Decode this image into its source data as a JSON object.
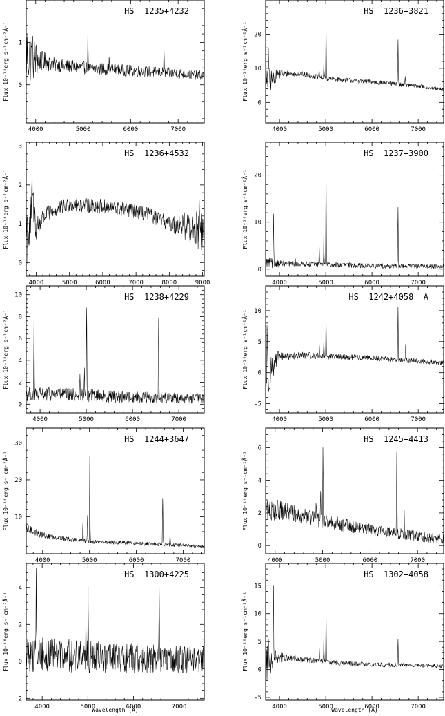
{
  "figure": {
    "xlabel": "Wavelength (Å)",
    "ylabel": "Flux 10⁻¹⁶erg s⁻¹cm⁻²Å⁻¹"
  },
  "chart_data": [
    {
      "type": "line",
      "title": "HS  1235+4232",
      "xlim": [
        3800,
        7550
      ],
      "ylim": [
        -0.9,
        2.0
      ],
      "xticks": [
        4000,
        5000,
        6000,
        7000
      ],
      "yticks": [
        0,
        1
      ],
      "continuum": [
        [
          3800,
          0.75
        ],
        [
          4000,
          0.6
        ],
        [
          4500,
          0.45
        ],
        [
          5000,
          0.4
        ],
        [
          6000,
          0.33
        ],
        [
          7000,
          0.27
        ],
        [
          7500,
          0.22
        ]
      ],
      "noise": [
        [
          3800,
          0.5
        ],
        [
          3950,
          0.35
        ],
        [
          4100,
          0.15
        ],
        [
          4500,
          0.1
        ],
        [
          7500,
          0.07
        ]
      ],
      "lines": [
        [
          5100,
          0.75
        ],
        [
          6700,
          0.65
        ],
        [
          5550,
          0.25
        ]
      ],
      "series": [
        {
          "values": []
        }
      ]
    },
    {
      "type": "line",
      "title": "HS  1236+3821",
      "xlim": [
        3700,
        7550
      ],
      "ylim": [
        -6,
        30
      ],
      "xticks": [
        4000,
        5000,
        6000,
        7000
      ],
      "yticks": [
        0,
        10,
        20
      ],
      "continuum": [
        [
          3700,
          5
        ],
        [
          3850,
          7
        ],
        [
          4000,
          8.5
        ],
        [
          4500,
          8.3
        ],
        [
          5000,
          7
        ],
        [
          6000,
          6
        ],
        [
          7000,
          4.8
        ],
        [
          7500,
          3.8
        ]
      ],
      "noise": [
        [
          3700,
          3
        ],
        [
          3900,
          1.2
        ],
        [
          4200,
          0.5
        ],
        [
          7500,
          0.35
        ]
      ],
      "lines": [
        [
          3760,
          10
        ],
        [
          4860,
          2
        ],
        [
          4960,
          5
        ],
        [
          5007,
          16
        ],
        [
          6563,
          13
        ],
        [
          6720,
          2.5
        ]
      ],
      "series": [
        {
          "values": []
        }
      ]
    },
    {
      "type": "line",
      "title": "HS  1236+4532",
      "xlim": [
        3700,
        9050
      ],
      "ylim": [
        -0.35,
        3.1
      ],
      "xticks": [
        4000,
        5000,
        6000,
        7000,
        8000,
        9000
      ],
      "yticks": [
        0,
        1,
        2,
        3
      ],
      "continuum": [
        [
          3800,
          0.8
        ],
        [
          3900,
          1.6
        ],
        [
          4000,
          0.9
        ],
        [
          4300,
          1.25
        ],
        [
          5000,
          1.5
        ],
        [
          6000,
          1.45
        ],
        [
          7000,
          1.32
        ],
        [
          7500,
          1.2
        ],
        [
          8000,
          1.0
        ],
        [
          8500,
          0.95
        ],
        [
          9000,
          0.8
        ]
      ],
      "noise": [
        [
          3700,
          0.7
        ],
        [
          3900,
          0.3
        ],
        [
          4300,
          0.12
        ],
        [
          8000,
          0.12
        ],
        [
          9000,
          0.35
        ]
      ],
      "lines": [
        [
          3880,
          0.8
        ],
        [
          8900,
          0.8
        ]
      ],
      "series": [
        {
          "values": []
        }
      ]
    },
    {
      "type": "line",
      "title": "HS  1237+3900",
      "xlim": [
        3700,
        7550
      ],
      "ylim": [
        -1.5,
        27
      ],
      "xticks": [
        4000,
        5000,
        6000,
        7000
      ],
      "yticks": [
        0,
        10,
        20
      ],
      "continuum": [
        [
          3700,
          1.2
        ],
        [
          4000,
          1.2
        ],
        [
          5000,
          1.0
        ],
        [
          6000,
          0.7
        ],
        [
          7500,
          0.6
        ]
      ],
      "noise": [
        [
          3700,
          0.9
        ],
        [
          4100,
          0.35
        ],
        [
          7500,
          0.3
        ]
      ],
      "lines": [
        [
          3869,
          10
        ],
        [
          4340,
          1
        ],
        [
          4860,
          4
        ],
        [
          4959,
          6.5
        ],
        [
          5007,
          21
        ],
        [
          6563,
          12.5
        ]
      ],
      "series": [
        {
          "values": []
        }
      ]
    },
    {
      "type": "line",
      "title": "HS  1238+4229",
      "xlim": [
        3700,
        7550
      ],
      "ylim": [
        -0.8,
        10.8
      ],
      "xticks": [
        4000,
        5000,
        6000,
        7000
      ],
      "yticks": [
        0,
        2,
        4,
        6,
        8,
        10
      ],
      "continuum": [
        [
          3700,
          0.9
        ],
        [
          4500,
          0.9
        ],
        [
          5500,
          0.7
        ],
        [
          7500,
          0.5
        ]
      ],
      "noise": [
        [
          3700,
          0.4
        ],
        [
          7500,
          0.3
        ]
      ],
      "lines": [
        [
          3869,
          7.2
        ],
        [
          4861,
          1.5
        ],
        [
          4959,
          2.5
        ],
        [
          5007,
          8
        ],
        [
          6563,
          7.3
        ]
      ],
      "series": [
        {
          "values": []
        }
      ]
    },
    {
      "type": "line",
      "title": "HS  1242+4058  A",
      "xlim": [
        3700,
        7550
      ],
      "ylim": [
        -6.5,
        14
      ],
      "xticks": [
        4000,
        5000,
        6000,
        7000
      ],
      "yticks": [
        -5,
        0,
        5,
        10
      ],
      "continuum": [
        [
          3700,
          -2
        ],
        [
          3800,
          0.5
        ],
        [
          4000,
          2.5
        ],
        [
          4500,
          2.8
        ],
        [
          5500,
          2.5
        ],
        [
          6500,
          2.1
        ],
        [
          7500,
          1.6
        ]
      ],
      "noise": [
        [
          3700,
          3
        ],
        [
          3850,
          1.2
        ],
        [
          4100,
          0.35
        ],
        [
          7500,
          0.25
        ]
      ],
      "lines": [
        [
          3730,
          9
        ],
        [
          4861,
          1.5
        ],
        [
          4959,
          2.5
        ],
        [
          5007,
          6.5
        ],
        [
          6563,
          8.5
        ],
        [
          6730,
          2.3
        ]
      ],
      "series": [
        {
          "values": []
        }
      ]
    },
    {
      "type": "line",
      "title": "HS  1244+3647",
      "xlim": [
        3650,
        7450
      ],
      "ylim": [
        0,
        34
      ],
      "xticks": [
        4000,
        5000,
        6000,
        7000
      ],
      "yticks": [
        10,
        20,
        30
      ],
      "continuum": [
        [
          3700,
          6.5
        ],
        [
          4000,
          5
        ],
        [
          4500,
          4
        ],
        [
          5000,
          3.3
        ],
        [
          6000,
          2.8
        ],
        [
          7000,
          2.3
        ],
        [
          7400,
          2.0
        ]
      ],
      "noise": [
        [
          3700,
          0.8
        ],
        [
          4200,
          0.4
        ],
        [
          7400,
          0.25
        ]
      ],
      "lines": [
        [
          4860,
          5
        ],
        [
          4959,
          7
        ],
        [
          5007,
          23
        ],
        [
          6563,
          12.5
        ],
        [
          6720,
          3
        ]
      ],
      "series": [
        {
          "values": []
        }
      ]
    },
    {
      "type": "line",
      "title": "HS  1245+4413",
      "xlim": [
        3800,
        7550
      ],
      "ylim": [
        -0.5,
        7.2
      ],
      "xticks": [
        4000,
        5000,
        6000,
        7000
      ],
      "yticks": [
        0,
        2,
        4,
        6
      ],
      "continuum": [
        [
          3800,
          2.2
        ],
        [
          4000,
          2.2
        ],
        [
          4500,
          1.9
        ],
        [
          5000,
          1.5
        ],
        [
          6000,
          1.0
        ],
        [
          7000,
          0.6
        ],
        [
          7500,
          0.4
        ]
      ],
      "noise": [
        [
          3800,
          0.45
        ],
        [
          4500,
          0.3
        ],
        [
          7500,
          0.2
        ]
      ],
      "lines": [
        [
          4861,
          1
        ],
        [
          4959,
          1.8
        ],
        [
          5007,
          4.5
        ],
        [
          6563,
          5
        ],
        [
          6720,
          1.1
        ]
      ],
      "series": [
        {
          "values": []
        }
      ]
    },
    {
      "type": "line",
      "title": "HS  1300+4225",
      "xlim": [
        3650,
        7550
      ],
      "ylim": [
        -2.1,
        5.3
      ],
      "xticks": [
        4000,
        5000,
        6000,
        7000
      ],
      "yticks": [
        -2,
        0,
        2,
        4
      ],
      "continuum": [
        [
          3650,
          0.4
        ],
        [
          4500,
          0.3
        ],
        [
          5500,
          0.2
        ],
        [
          7500,
          0.1
        ]
      ],
      "noise": [
        [
          3650,
          0.6
        ],
        [
          7550,
          0.45
        ]
      ],
      "lines": [
        [
          3869,
          4.3
        ],
        [
          4959,
          1.3
        ],
        [
          5007,
          3.8
        ],
        [
          6563,
          4
        ]
      ],
      "series": [
        {
          "values": []
        }
      ]
    },
    {
      "type": "line",
      "title": "HS  1302+4058",
      "xlim": [
        3700,
        7550
      ],
      "ylim": [
        -5.5,
        19
      ],
      "xticks": [
        4000,
        5000,
        6000,
        7000
      ],
      "yticks": [
        -5,
        0,
        5,
        10,
        15
      ],
      "continuum": [
        [
          3700,
          1
        ],
        [
          3900,
          2.3
        ],
        [
          4500,
          1.8
        ],
        [
          5000,
          1.3
        ],
        [
          6000,
          0.9
        ],
        [
          7500,
          0.6
        ]
      ],
      "noise": [
        [
          3700,
          2.5
        ],
        [
          3900,
          0.8
        ],
        [
          4200,
          0.3
        ],
        [
          7500,
          0.2
        ]
      ],
      "lines": [
        [
          3760,
          4
        ],
        [
          3869,
          13
        ],
        [
          4340,
          0.6
        ],
        [
          4861,
          2.5
        ],
        [
          4959,
          4.5
        ],
        [
          5007,
          9
        ],
        [
          6563,
          4.6
        ]
      ],
      "series": [
        {
          "values": []
        }
      ]
    }
  ]
}
